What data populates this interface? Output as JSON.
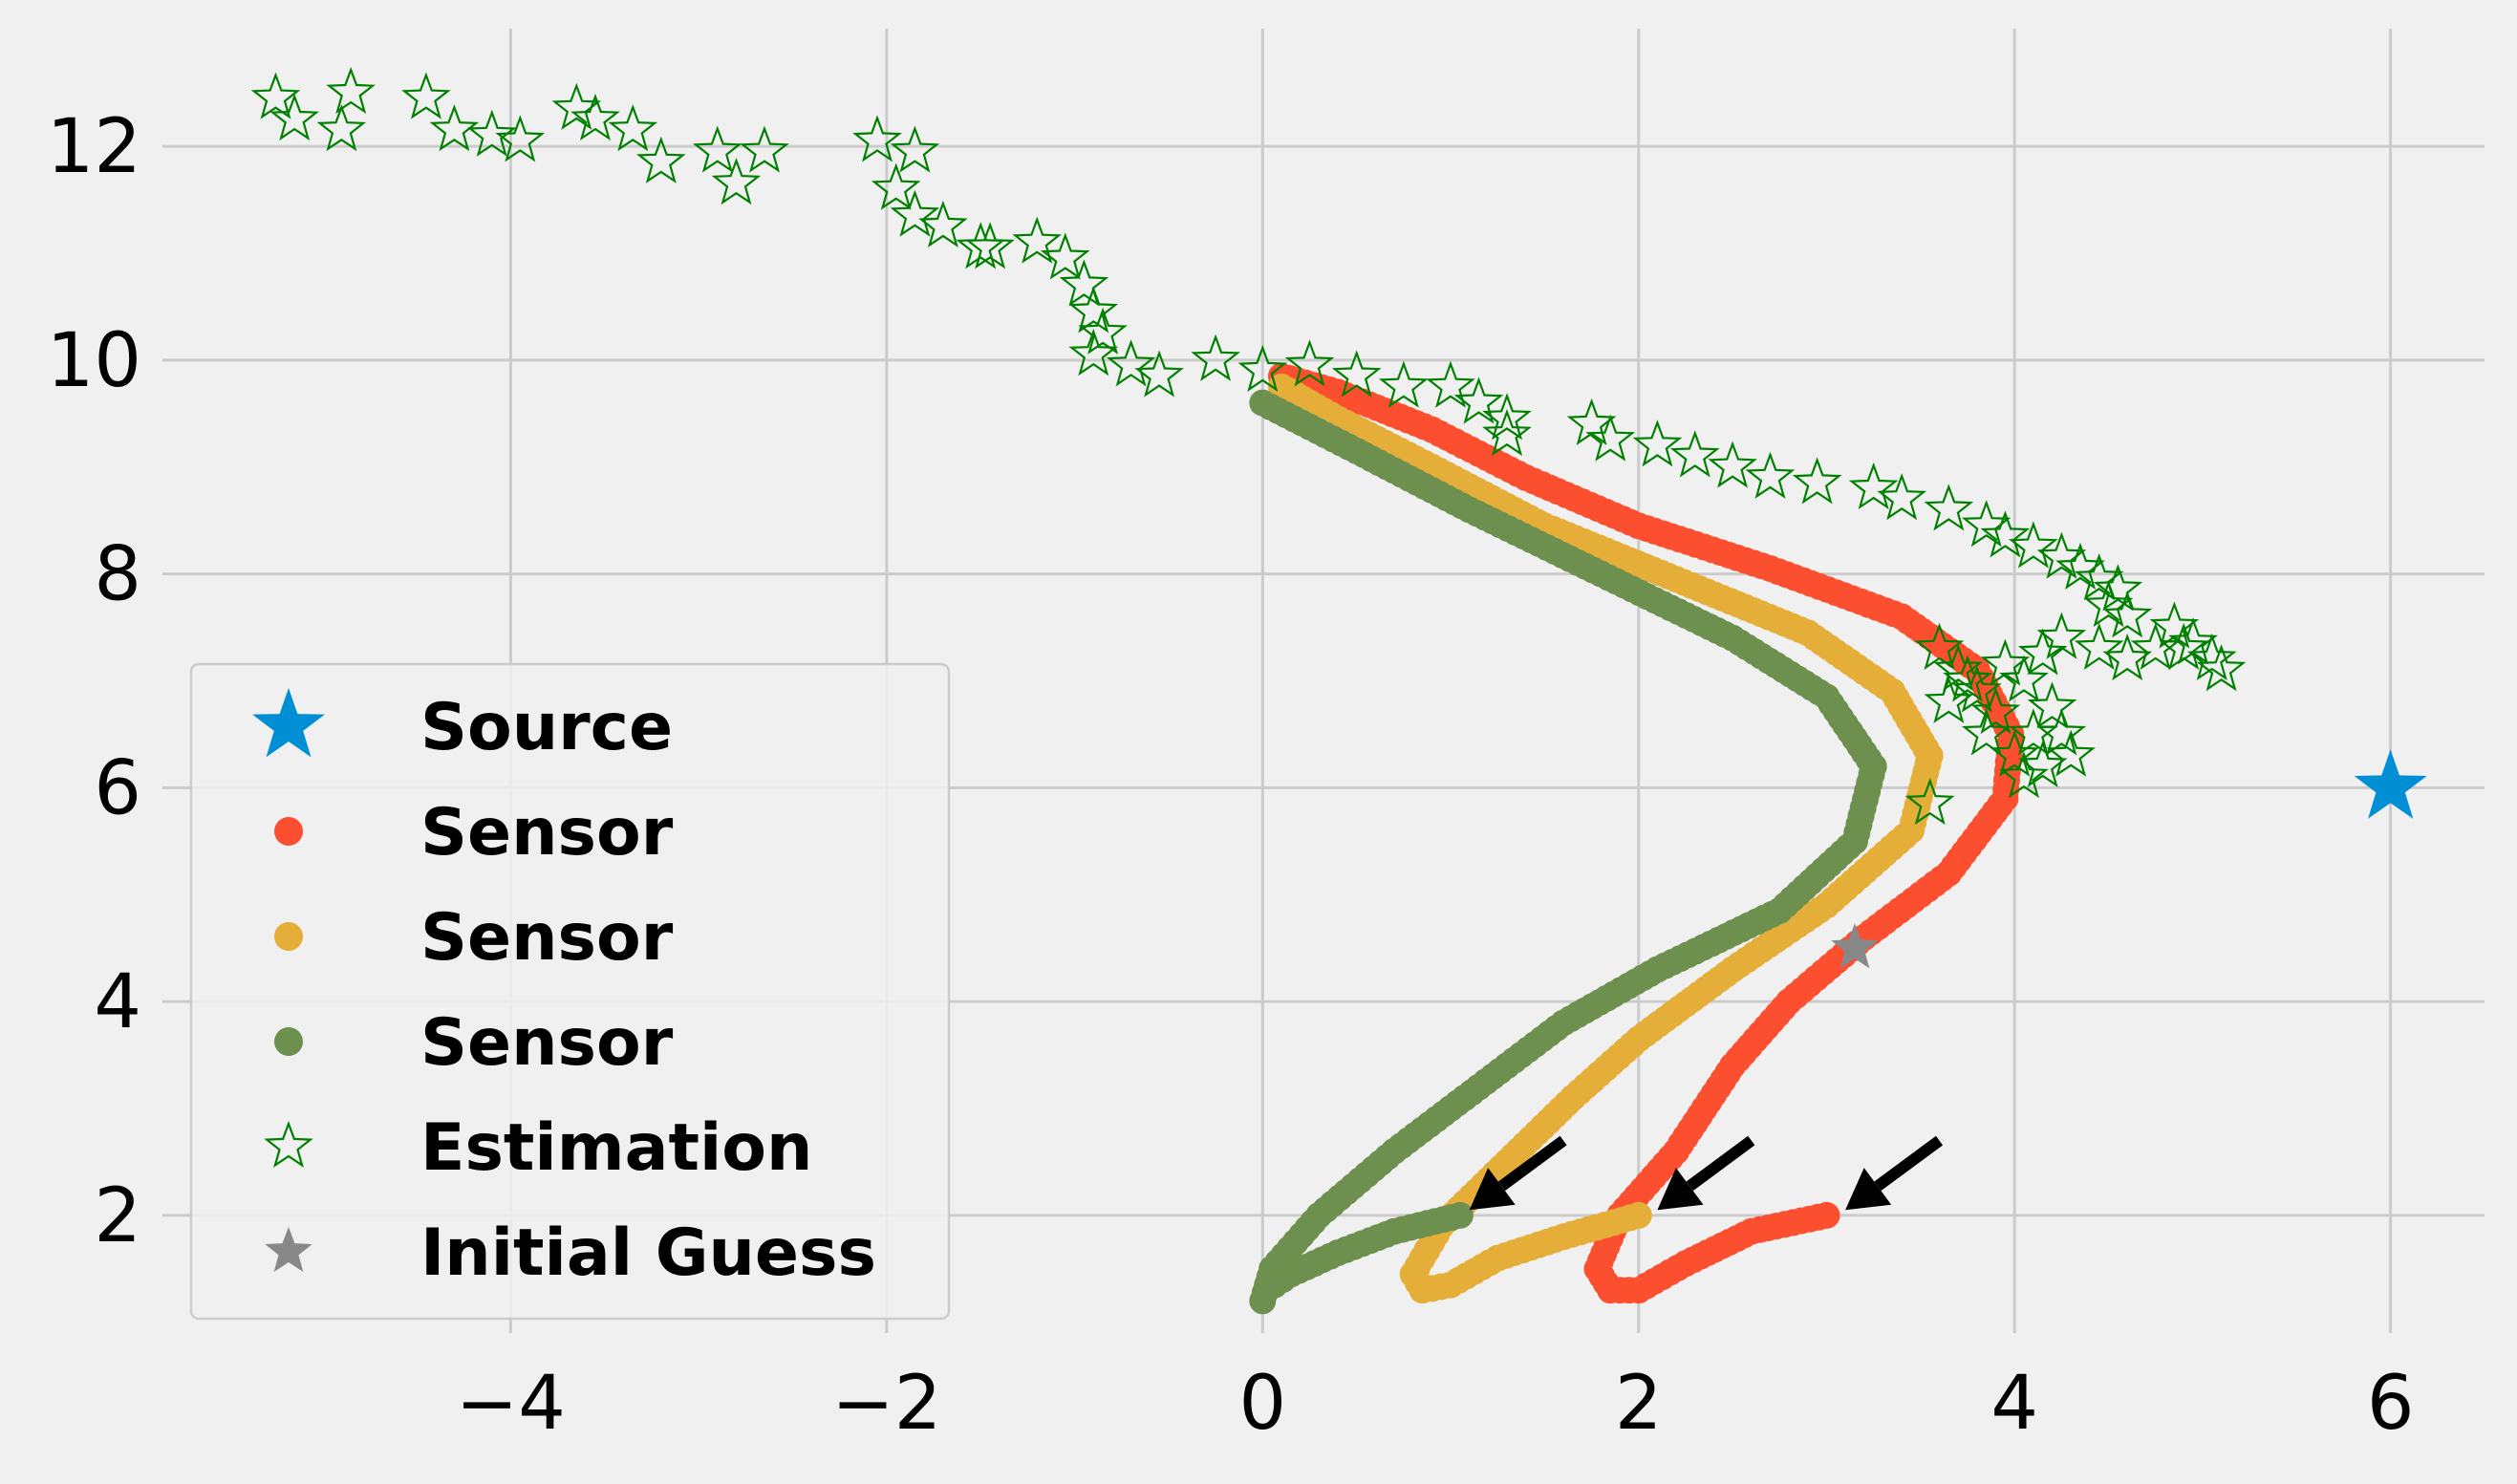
{
  "chart_data": {
    "type": "scatter",
    "title": "",
    "xlabel": "",
    "ylabel": "",
    "xlim": [
      -5.7,
      6.5
    ],
    "ylim": [
      0.9,
      13.1
    ],
    "xticks": [
      -4,
      -2,
      0,
      2,
      4,
      6
    ],
    "xtick_labels": [
      "−4",
      "−2",
      "0",
      "2",
      "4",
      "6"
    ],
    "yticks": [
      2,
      4,
      6,
      8,
      10,
      12
    ],
    "ytick_labels": [
      "2",
      "4",
      "6",
      "8",
      "10",
      "12"
    ],
    "grid": true,
    "legend_position": "lower-left",
    "legend": [
      {
        "label": "Source",
        "marker": "star-filled",
        "color": "#008fd5"
      },
      {
        "label": "Sensor",
        "marker": "dot",
        "color": "#fc4f30"
      },
      {
        "label": "Sensor",
        "marker": "dot",
        "color": "#e5ae38"
      },
      {
        "label": "Sensor",
        "marker": "dot",
        "color": "#6d904f"
      },
      {
        "label": "Estimation",
        "marker": "star-hollow",
        "color": "#008000"
      },
      {
        "label": "Initial Guess",
        "marker": "star-filled",
        "color": "#888888"
      }
    ],
    "source": {
      "x": 6.0,
      "y": 6.0,
      "color": "#008fd5"
    },
    "initial_guess": {
      "x": 3.15,
      "y": 4.5,
      "color": "#888888"
    },
    "series": [
      {
        "color": "#fc4f30",
        "path": [
          [
            3.0,
            2.0
          ],
          [
            2.6,
            1.85
          ],
          [
            2.25,
            1.55
          ],
          [
            2.0,
            1.3
          ],
          [
            1.85,
            1.3
          ],
          [
            1.78,
            1.5
          ],
          [
            1.9,
            2.0
          ],
          [
            2.2,
            2.6
          ],
          [
            2.5,
            3.4
          ],
          [
            2.8,
            4.0
          ],
          [
            3.2,
            4.6
          ],
          [
            3.65,
            5.2
          ],
          [
            3.95,
            5.9
          ],
          [
            3.98,
            6.5
          ],
          [
            3.8,
            7.1
          ],
          [
            3.4,
            7.6
          ],
          [
            2.7,
            8.05
          ],
          [
            2.0,
            8.45
          ],
          [
            1.4,
            8.9
          ],
          [
            0.9,
            9.35
          ],
          [
            0.4,
            9.7
          ],
          [
            0.1,
            9.85
          ]
        ]
      },
      {
        "color": "#e5ae38",
        "path": [
          [
            2.0,
            2.0
          ],
          [
            1.6,
            1.8
          ],
          [
            1.25,
            1.6
          ],
          [
            1.0,
            1.35
          ],
          [
            0.85,
            1.3
          ],
          [
            0.8,
            1.45
          ],
          [
            0.95,
            1.9
          ],
          [
            1.3,
            2.5
          ],
          [
            1.65,
            3.1
          ],
          [
            2.0,
            3.65
          ],
          [
            2.5,
            4.3
          ],
          [
            3.0,
            4.9
          ],
          [
            3.45,
            5.6
          ],
          [
            3.55,
            6.3
          ],
          [
            3.35,
            6.9
          ],
          [
            2.9,
            7.45
          ],
          [
            2.2,
            7.95
          ],
          [
            1.5,
            8.45
          ],
          [
            0.9,
            9.0
          ],
          [
            0.4,
            9.45
          ],
          [
            0.1,
            9.75
          ]
        ]
      },
      {
        "color": "#6d904f",
        "path": [
          [
            1.05,
            2.0
          ],
          [
            0.7,
            1.85
          ],
          [
            0.4,
            1.65
          ],
          [
            0.15,
            1.45
          ],
          [
            0.02,
            1.3
          ],
          [
            0.0,
            1.2
          ],
          [
            0.05,
            1.5
          ],
          [
            0.3,
            2.0
          ],
          [
            0.7,
            2.6
          ],
          [
            1.15,
            3.2
          ],
          [
            1.6,
            3.8
          ],
          [
            2.1,
            4.3
          ],
          [
            2.75,
            4.85
          ],
          [
            3.15,
            5.5
          ],
          [
            3.25,
            6.2
          ],
          [
            3.0,
            6.85
          ],
          [
            2.5,
            7.4
          ],
          [
            1.8,
            8.0
          ],
          [
            1.1,
            8.6
          ],
          [
            0.5,
            9.15
          ],
          [
            0.0,
            9.6
          ]
        ]
      }
    ],
    "estimation": {
      "color": "#008000",
      "points": [
        [
          -5.25,
          12.45
        ],
        [
          -5.15,
          12.25
        ],
        [
          -4.9,
          12.15
        ],
        [
          -4.85,
          12.5
        ],
        [
          -4.45,
          12.45
        ],
        [
          -4.3,
          12.15
        ],
        [
          -4.1,
          12.1
        ],
        [
          -3.95,
          12.05
        ],
        [
          -3.65,
          12.35
        ],
        [
          -3.55,
          12.25
        ],
        [
          -3.35,
          12.15
        ],
        [
          -3.2,
          11.85
        ],
        [
          -2.9,
          11.95
        ],
        [
          -2.8,
          11.65
        ],
        [
          -2.65,
          11.95
        ],
        [
          -2.05,
          12.05
        ],
        [
          -1.85,
          11.95
        ],
        [
          -1.95,
          11.6
        ],
        [
          -1.85,
          11.35
        ],
        [
          -1.7,
          11.25
        ],
        [
          -1.5,
          11.05
        ],
        [
          -1.45,
          11.05
        ],
        [
          -1.2,
          11.1
        ],
        [
          -1.05,
          10.95
        ],
        [
          -0.95,
          10.7
        ],
        [
          -0.9,
          10.45
        ],
        [
          -0.9,
          10.05
        ],
        [
          -0.85,
          10.25
        ],
        [
          -0.7,
          9.95
        ],
        [
          -0.55,
          9.85
        ],
        [
          -0.25,
          10.0
        ],
        [
          0.0,
          9.9
        ],
        [
          0.25,
          9.95
        ],
        [
          0.5,
          9.85
        ],
        [
          0.75,
          9.75
        ],
        [
          1.0,
          9.75
        ],
        [
          1.15,
          9.6
        ],
        [
          1.3,
          9.45
        ],
        [
          1.3,
          9.3
        ],
        [
          1.75,
          9.4
        ],
        [
          1.85,
          9.25
        ],
        [
          2.1,
          9.2
        ],
        [
          2.3,
          9.1
        ],
        [
          2.5,
          9.0
        ],
        [
          2.7,
          8.9
        ],
        [
          2.95,
          8.85
        ],
        [
          3.25,
          8.8
        ],
        [
          3.4,
          8.7
        ],
        [
          3.65,
          8.6
        ],
        [
          3.85,
          8.45
        ],
        [
          3.95,
          8.35
        ],
        [
          4.1,
          8.25
        ],
        [
          4.25,
          8.15
        ],
        [
          4.35,
          8.05
        ],
        [
          4.45,
          7.95
        ],
        [
          4.55,
          7.85
        ],
        [
          4.5,
          7.7
        ],
        [
          4.6,
          7.6
        ],
        [
          3.6,
          7.3
        ],
        [
          3.7,
          7.1
        ],
        [
          3.8,
          6.9
        ],
        [
          3.9,
          6.7
        ],
        [
          3.85,
          6.5
        ],
        [
          4.0,
          6.3
        ],
        [
          4.05,
          6.1
        ],
        [
          4.15,
          6.2
        ],
        [
          4.25,
          6.5
        ],
        [
          4.2,
          6.75
        ],
        [
          4.05,
          7.0
        ],
        [
          4.15,
          7.25
        ],
        [
          4.25,
          7.4
        ],
        [
          4.45,
          7.3
        ],
        [
          4.6,
          7.2
        ],
        [
          4.75,
          7.3
        ],
        [
          4.85,
          7.5
        ],
        [
          4.95,
          7.35
        ],
        [
          5.05,
          7.2
        ],
        [
          5.1,
          7.1
        ],
        [
          4.9,
          7.3
        ],
        [
          3.75,
          7.0
        ],
        [
          3.95,
          7.15
        ],
        [
          3.55,
          5.85
        ],
        [
          4.1,
          6.5
        ],
        [
          3.65,
          6.8
        ],
        [
          4.3,
          6.3
        ]
      ]
    },
    "arrows": [
      {
        "from": [
          1.6,
          2.7
        ],
        "to": [
          1.1,
          2.05
        ]
      },
      {
        "from": [
          2.6,
          2.7
        ],
        "to": [
          2.1,
          2.05
        ]
      },
      {
        "from": [
          3.6,
          2.7
        ],
        "to": [
          3.1,
          2.05
        ]
      }
    ]
  }
}
